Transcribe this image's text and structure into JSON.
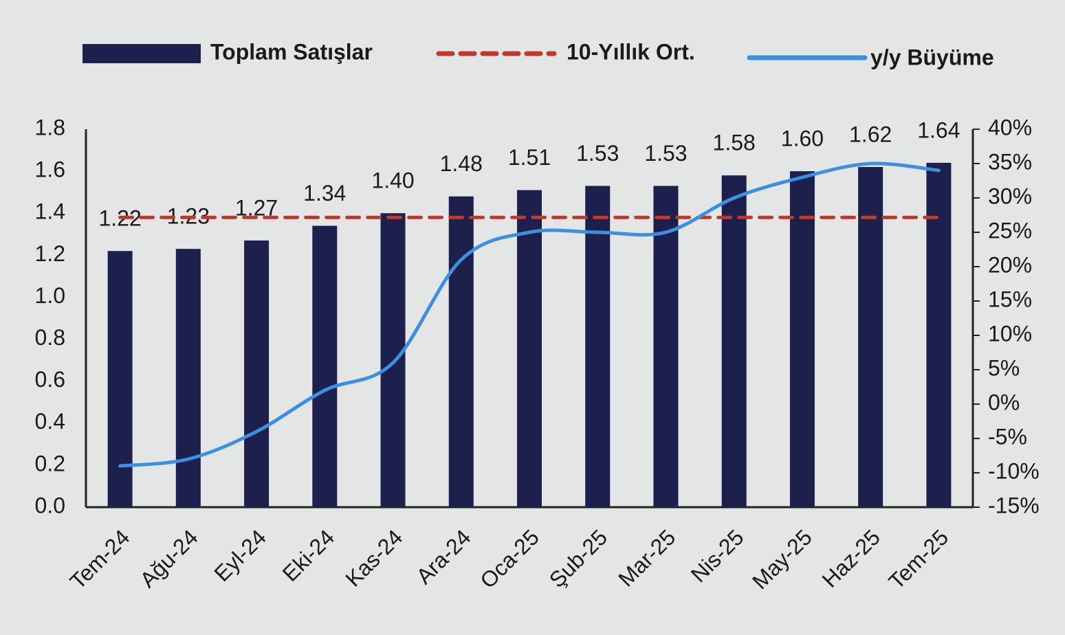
{
  "chart_data": {
    "type": "bar-line",
    "categories": [
      "Tem-24",
      "Ağu-24",
      "Eyl-24",
      "Eki-24",
      "Kas-24",
      "Ara-24",
      "Oca-25",
      "Şub-25",
      "Mar-25",
      "Nis-25",
      "May-25",
      "Haz-25",
      "Tem-25"
    ],
    "series": [
      {
        "name": "Toplam Satışlar",
        "type": "bar",
        "color": "#1d1f4d",
        "values": [
          1.22,
          1.23,
          1.27,
          1.34,
          1.4,
          1.48,
          1.51,
          1.53,
          1.53,
          1.58,
          1.6,
          1.62,
          1.64
        ],
        "value_labels": [
          "1.22",
          "1.23",
          "1.27",
          "1.34",
          "1.40",
          "1.48",
          "1.51",
          "1.53",
          "1.53",
          "1.58",
          "1.60",
          "1.62",
          "1.64"
        ]
      },
      {
        "name": "10-Yıllık Ort.",
        "type": "line",
        "dashed": true,
        "color": "#c0392b",
        "values": [
          1.38,
          1.38,
          1.38,
          1.38,
          1.38,
          1.38,
          1.38,
          1.38,
          1.38,
          1.38,
          1.38,
          1.38,
          1.38
        ]
      },
      {
        "name": "y/y Büyüme",
        "type": "line",
        "smooth": true,
        "axis": "y2",
        "color": "#3d8fe0",
        "values": [
          -9,
          -8,
          -4,
          2,
          6,
          21,
          25,
          25,
          25,
          30,
          33,
          35,
          34
        ]
      }
    ],
    "ylim": [
      0,
      1.8
    ],
    "yticks": [
      {
        "value": 0,
        "label": "0.0"
      },
      0.2,
      0.4,
      0.6,
      0.8,
      {
        "value": 1,
        "label": "1.0"
      },
      1.2,
      1.4,
      1.6,
      1.8
    ],
    "y2lim": [
      -15,
      40
    ],
    "y2ticks": [
      {
        "value": -15,
        "label": "-15%"
      },
      {
        "value": -10,
        "label": "-10%"
      },
      {
        "value": -5,
        "label": "-5%"
      },
      {
        "value": 0,
        "label": "0%"
      },
      {
        "value": 5,
        "label": "5%"
      },
      {
        "value": 10,
        "label": "10%"
      },
      {
        "value": 15,
        "label": "15%"
      },
      {
        "value": 20,
        "label": "20%"
      },
      {
        "value": 25,
        "label": "25%"
      },
      {
        "value": 30,
        "label": "30%"
      },
      {
        "value": 35,
        "label": "35%"
      },
      {
        "value": 40,
        "label": "40%"
      }
    ],
    "legend": "top",
    "grid": false
  }
}
